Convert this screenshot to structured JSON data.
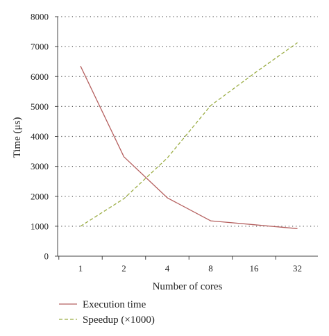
{
  "chart_data": {
    "type": "line",
    "title": "",
    "xlabel": "Number of cores",
    "ylabel": "Time (μs)",
    "categories": [
      "1",
      "2",
      "4",
      "8",
      "16",
      "32"
    ],
    "ylim": [
      0,
      8000
    ],
    "yticks": [
      "0",
      "1000",
      "2000",
      "3000",
      "4000",
      "5000",
      "6000",
      "7000",
      "8000"
    ],
    "grid": "horizontal dotted",
    "legend_position": "bottom-left",
    "series": [
      {
        "name": "Execution time",
        "color": "#b5605f",
        "style": "solid",
        "values": [
          6350,
          3320,
          1950,
          1180,
          1050,
          920
        ]
      },
      {
        "name": "Speedup (×1000)",
        "color": "#9bad44",
        "style": "dashed",
        "values": [
          1000,
          1920,
          3280,
          5030,
          6100,
          7130
        ]
      }
    ]
  }
}
